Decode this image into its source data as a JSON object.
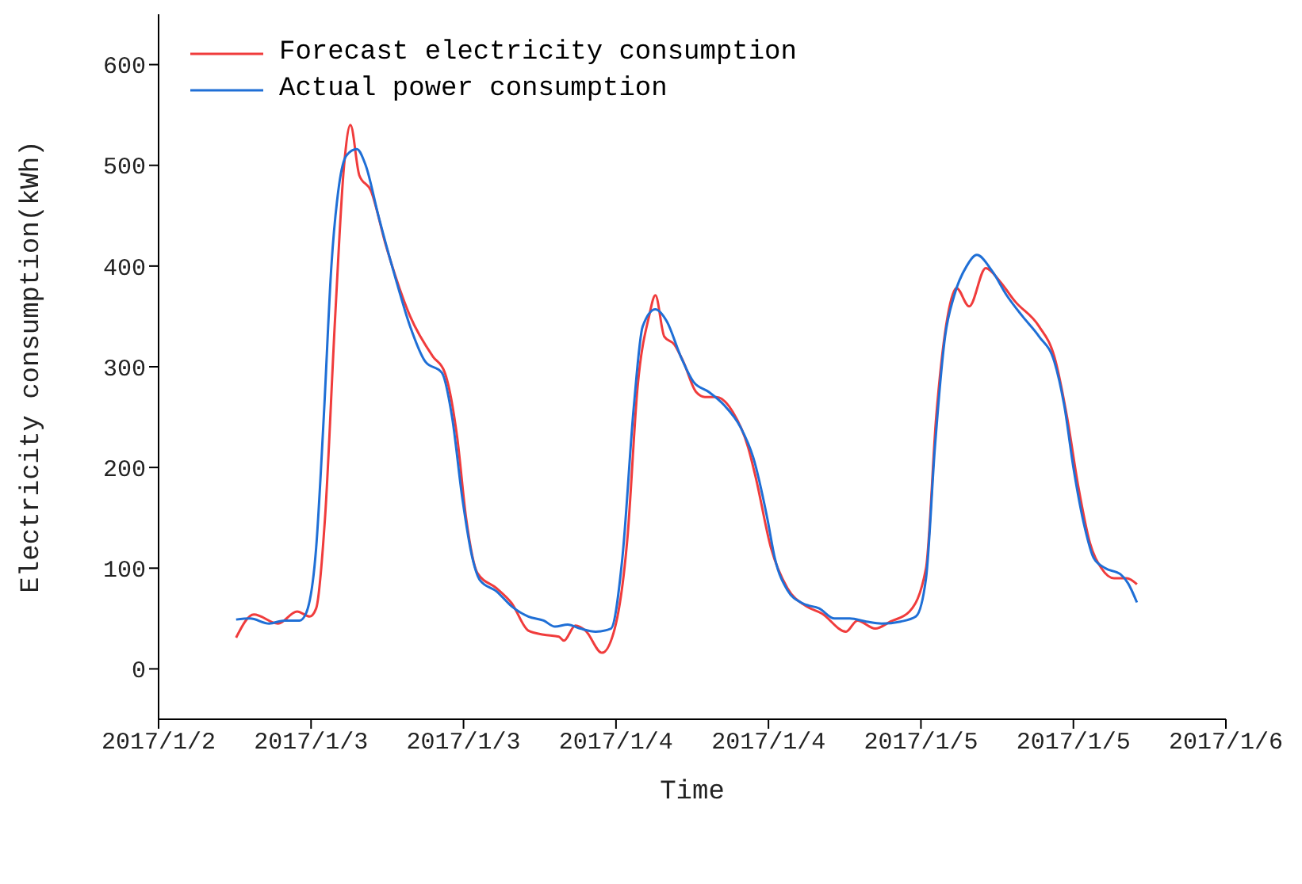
{
  "chart_data": {
    "type": "line",
    "xlabel": "Time",
    "ylabel": "Electricity consumption(kWh)",
    "xlim": [
      "2017-01-02T12:00",
      "2017-01-06T00:00"
    ],
    "xticks": [
      {
        "value": "2017-01-02T12:00",
        "label": "2017/1/2"
      },
      {
        "value": "2017-01-03T00:00",
        "label": "2017/1/3"
      },
      {
        "value": "2017-01-03T12:00",
        "label": "2017/1/3"
      },
      {
        "value": "2017-01-04T00:00",
        "label": "2017/1/4"
      },
      {
        "value": "2017-01-04T12:00",
        "label": "2017/1/4"
      },
      {
        "value": "2017-01-05T00:00",
        "label": "2017/1/5"
      },
      {
        "value": "2017-01-05T12:00",
        "label": "2017/1/5"
      },
      {
        "value": "2017-01-06T00:00",
        "label": "2017/1/6"
      }
    ],
    "ylim": [
      -50,
      650
    ],
    "yticks": [
      0,
      100,
      200,
      300,
      400,
      500,
      600
    ],
    "legend": "top left",
    "marker": "none",
    "line_style": "solid",
    "series": [
      {
        "name": "Forecast electricity consumption",
        "color": "#f03c3c",
        "x": [
          "2017-01-02T18:06",
          "2017-01-02T19:30",
          "2017-01-02T21:24",
          "2017-01-02T22:54",
          "2017-01-02T23:54",
          "2017-01-03T00:24",
          "2017-01-03T01:06",
          "2017-01-03T01:54",
          "2017-01-03T02:36",
          "2017-01-03T03:06",
          "2017-01-03T03:48",
          "2017-01-03T04:42",
          "2017-01-03T05:54",
          "2017-01-03T07:48",
          "2017-01-03T09:36",
          "2017-01-03T10:30",
          "2017-01-03T11:30",
          "2017-01-03T12:12",
          "2017-01-03T13:06",
          "2017-01-03T14:36",
          "2017-01-03T15:48",
          "2017-01-03T17:06",
          "2017-01-03T18:18",
          "2017-01-03T19:30",
          "2017-01-03T19:54",
          "2017-01-03T20:48",
          "2017-01-03T21:36",
          "2017-01-03T22:54",
          "2017-01-03T23:54",
          "2017-01-04T00:54",
          "2017-01-04T01:42",
          "2017-01-04T02:36",
          "2017-01-04T03:06",
          "2017-01-04T03:48",
          "2017-01-04T04:36",
          "2017-01-04T05:18",
          "2017-01-04T06:18",
          "2017-01-04T07:00",
          "2017-01-04T07:54",
          "2017-01-04T09:12",
          "2017-01-04T10:24",
          "2017-01-04T11:00",
          "2017-01-04T12:12",
          "2017-01-04T13:30",
          "2017-01-04T15:00",
          "2017-01-04T16:12",
          "2017-01-04T18:06",
          "2017-01-04T19:00",
          "2017-01-04T20:24",
          "2017-01-04T21:36",
          "2017-01-04T23:06",
          "2017-01-05T00:24",
          "2017-01-05T01:12",
          "2017-01-05T02:06",
          "2017-01-05T02:48",
          "2017-01-05T03:48",
          "2017-01-05T05:06",
          "2017-01-05T06:12",
          "2017-01-05T07:24",
          "2017-01-05T09:18",
          "2017-01-05T10:30",
          "2017-01-05T11:30",
          "2017-01-05T12:24",
          "2017-01-05T13:18",
          "2017-01-05T14:12",
          "2017-01-05T15:12",
          "2017-01-05T16:12",
          "2017-01-05T17:00"
        ],
        "values": [
          31,
          54,
          45,
          57,
          52,
          60,
          150,
          350,
          500,
          540,
          490,
          475,
          420,
          350,
          310,
          295,
          230,
          150,
          95,
          80,
          65,
          38,
          34,
          32,
          28,
          43,
          38,
          16,
          40,
          130,
          280,
          350,
          371,
          330,
          322,
          305,
          275,
          270,
          270,
          255,
          220,
          190,
          120,
          80,
          62,
          55,
          37,
          48,
          40,
          47,
          57,
          100,
          250,
          350,
          378,
          360,
          398,
          385,
          365,
          340,
          310,
          250,
          180,
          125,
          100,
          90,
          90,
          84
        ]
      },
      {
        "name": "Actual power consumption",
        "color": "#1f6fd6",
        "x": [
          "2017-01-02T18:06",
          "2017-01-02T19:12",
          "2017-01-02T20:42",
          "2017-01-02T21:54",
          "2017-01-02T23:06",
          "2017-01-02T23:36",
          "2017-01-03T00:24",
          "2017-01-03T01:00",
          "2017-01-03T01:36",
          "2017-01-03T02:12",
          "2017-01-03T02:48",
          "2017-01-03T03:36",
          "2017-01-03T04:18",
          "2017-01-03T05:18",
          "2017-01-03T06:36",
          "2017-01-03T07:48",
          "2017-01-03T09:00",
          "2017-01-03T10:18",
          "2017-01-03T11:06",
          "2017-01-03T11:54",
          "2017-01-03T12:42",
          "2017-01-03T13:18",
          "2017-01-03T14:36",
          "2017-01-03T15:48",
          "2017-01-03T17:06",
          "2017-01-03T18:18",
          "2017-01-03T19:12",
          "2017-01-03T20:12",
          "2017-01-03T21:12",
          "2017-01-03T22:24",
          "2017-01-03T23:36",
          "2017-01-04T00:30",
          "2017-01-04T01:24",
          "2017-01-04T02:06",
          "2017-01-04T03:06",
          "2017-01-04T04:00",
          "2017-01-04T05:06",
          "2017-01-04T06:06",
          "2017-01-04T07:18",
          "2017-01-04T08:30",
          "2017-01-04T09:48",
          "2017-01-04T10:48",
          "2017-01-04T11:54",
          "2017-01-04T12:30",
          "2017-01-04T13:30",
          "2017-01-04T14:42",
          "2017-01-04T16:00",
          "2017-01-04T17:12",
          "2017-01-04T18:24",
          "2017-01-04T19:42",
          "2017-01-04T20:54",
          "2017-01-04T22:24",
          "2017-01-04T23:36",
          "2017-01-05T00:24",
          "2017-01-05T01:06",
          "2017-01-05T01:54",
          "2017-01-05T02:36",
          "2017-01-05T03:36",
          "2017-01-05T04:24",
          "2017-01-05T05:36",
          "2017-01-05T06:48",
          "2017-01-05T08:00",
          "2017-01-05T09:18",
          "2017-01-05T10:30",
          "2017-01-05T11:18",
          "2017-01-05T12:00",
          "2017-01-05T12:54",
          "2017-01-05T13:36",
          "2017-01-05T14:30",
          "2017-01-05T15:42",
          "2017-01-05T16:18",
          "2017-01-05T17:00"
        ],
        "values": [
          49,
          50,
          45,
          48,
          48,
          55,
          120,
          250,
          400,
          480,
          510,
          516,
          500,
          450,
          390,
          340,
          305,
          294,
          250,
          170,
          110,
          88,
          77,
          62,
          52,
          48,
          42,
          44,
          40,
          37,
          40,
          110,
          260,
          340,
          357,
          345,
          310,
          285,
          275,
          262,
          240,
          210,
          150,
          110,
          78,
          65,
          60,
          50,
          50,
          47,
          45,
          47,
          52,
          90,
          220,
          330,
          370,
          400,
          411,
          395,
          370,
          350,
          330,
          305,
          260,
          200,
          140,
          110,
          100,
          94,
          85,
          66
        ]
      }
    ]
  }
}
